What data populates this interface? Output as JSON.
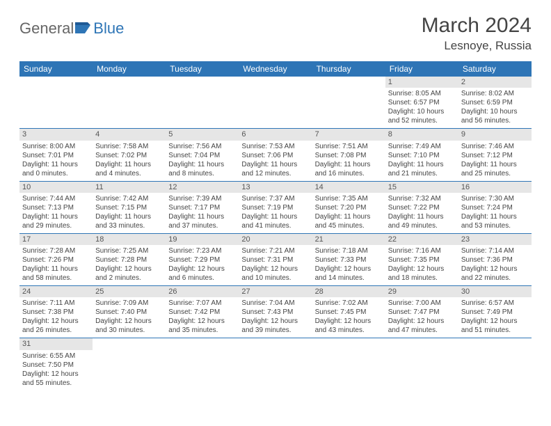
{
  "logo": {
    "text1": "General",
    "text2": "Blue"
  },
  "title": "March 2024",
  "location": "Lesnoye, Russia",
  "weekdays": [
    "Sunday",
    "Monday",
    "Tuesday",
    "Wednesday",
    "Thursday",
    "Friday",
    "Saturday"
  ],
  "colors": {
    "header_bg": "#2e75b6",
    "header_text": "#ffffff",
    "daynum_bg": "#e6e6e6",
    "border": "#2e75b6",
    "text": "#444444"
  },
  "fonts": {
    "title_size": 30,
    "location_size": 17,
    "weekday_size": 12,
    "cell_size": 10
  },
  "weeks": [
    [
      null,
      null,
      null,
      null,
      null,
      {
        "day": "1",
        "sunrise": "Sunrise: 8:05 AM",
        "sunset": "Sunset: 6:57 PM",
        "daylight": "Daylight: 10 hours and 52 minutes."
      },
      {
        "day": "2",
        "sunrise": "Sunrise: 8:02 AM",
        "sunset": "Sunset: 6:59 PM",
        "daylight": "Daylight: 10 hours and 56 minutes."
      }
    ],
    [
      {
        "day": "3",
        "sunrise": "Sunrise: 8:00 AM",
        "sunset": "Sunset: 7:01 PM",
        "daylight": "Daylight: 11 hours and 0 minutes."
      },
      {
        "day": "4",
        "sunrise": "Sunrise: 7:58 AM",
        "sunset": "Sunset: 7:02 PM",
        "daylight": "Daylight: 11 hours and 4 minutes."
      },
      {
        "day": "5",
        "sunrise": "Sunrise: 7:56 AM",
        "sunset": "Sunset: 7:04 PM",
        "daylight": "Daylight: 11 hours and 8 minutes."
      },
      {
        "day": "6",
        "sunrise": "Sunrise: 7:53 AM",
        "sunset": "Sunset: 7:06 PM",
        "daylight": "Daylight: 11 hours and 12 minutes."
      },
      {
        "day": "7",
        "sunrise": "Sunrise: 7:51 AM",
        "sunset": "Sunset: 7:08 PM",
        "daylight": "Daylight: 11 hours and 16 minutes."
      },
      {
        "day": "8",
        "sunrise": "Sunrise: 7:49 AM",
        "sunset": "Sunset: 7:10 PM",
        "daylight": "Daylight: 11 hours and 21 minutes."
      },
      {
        "day": "9",
        "sunrise": "Sunrise: 7:46 AM",
        "sunset": "Sunset: 7:12 PM",
        "daylight": "Daylight: 11 hours and 25 minutes."
      }
    ],
    [
      {
        "day": "10",
        "sunrise": "Sunrise: 7:44 AM",
        "sunset": "Sunset: 7:13 PM",
        "daylight": "Daylight: 11 hours and 29 minutes."
      },
      {
        "day": "11",
        "sunrise": "Sunrise: 7:42 AM",
        "sunset": "Sunset: 7:15 PM",
        "daylight": "Daylight: 11 hours and 33 minutes."
      },
      {
        "day": "12",
        "sunrise": "Sunrise: 7:39 AM",
        "sunset": "Sunset: 7:17 PM",
        "daylight": "Daylight: 11 hours and 37 minutes."
      },
      {
        "day": "13",
        "sunrise": "Sunrise: 7:37 AM",
        "sunset": "Sunset: 7:19 PM",
        "daylight": "Daylight: 11 hours and 41 minutes."
      },
      {
        "day": "14",
        "sunrise": "Sunrise: 7:35 AM",
        "sunset": "Sunset: 7:20 PM",
        "daylight": "Daylight: 11 hours and 45 minutes."
      },
      {
        "day": "15",
        "sunrise": "Sunrise: 7:32 AM",
        "sunset": "Sunset: 7:22 PM",
        "daylight": "Daylight: 11 hours and 49 minutes."
      },
      {
        "day": "16",
        "sunrise": "Sunrise: 7:30 AM",
        "sunset": "Sunset: 7:24 PM",
        "daylight": "Daylight: 11 hours and 53 minutes."
      }
    ],
    [
      {
        "day": "17",
        "sunrise": "Sunrise: 7:28 AM",
        "sunset": "Sunset: 7:26 PM",
        "daylight": "Daylight: 11 hours and 58 minutes."
      },
      {
        "day": "18",
        "sunrise": "Sunrise: 7:25 AM",
        "sunset": "Sunset: 7:28 PM",
        "daylight": "Daylight: 12 hours and 2 minutes."
      },
      {
        "day": "19",
        "sunrise": "Sunrise: 7:23 AM",
        "sunset": "Sunset: 7:29 PM",
        "daylight": "Daylight: 12 hours and 6 minutes."
      },
      {
        "day": "20",
        "sunrise": "Sunrise: 7:21 AM",
        "sunset": "Sunset: 7:31 PM",
        "daylight": "Daylight: 12 hours and 10 minutes."
      },
      {
        "day": "21",
        "sunrise": "Sunrise: 7:18 AM",
        "sunset": "Sunset: 7:33 PM",
        "daylight": "Daylight: 12 hours and 14 minutes."
      },
      {
        "day": "22",
        "sunrise": "Sunrise: 7:16 AM",
        "sunset": "Sunset: 7:35 PM",
        "daylight": "Daylight: 12 hours and 18 minutes."
      },
      {
        "day": "23",
        "sunrise": "Sunrise: 7:14 AM",
        "sunset": "Sunset: 7:36 PM",
        "daylight": "Daylight: 12 hours and 22 minutes."
      }
    ],
    [
      {
        "day": "24",
        "sunrise": "Sunrise: 7:11 AM",
        "sunset": "Sunset: 7:38 PM",
        "daylight": "Daylight: 12 hours and 26 minutes."
      },
      {
        "day": "25",
        "sunrise": "Sunrise: 7:09 AM",
        "sunset": "Sunset: 7:40 PM",
        "daylight": "Daylight: 12 hours and 30 minutes."
      },
      {
        "day": "26",
        "sunrise": "Sunrise: 7:07 AM",
        "sunset": "Sunset: 7:42 PM",
        "daylight": "Daylight: 12 hours and 35 minutes."
      },
      {
        "day": "27",
        "sunrise": "Sunrise: 7:04 AM",
        "sunset": "Sunset: 7:43 PM",
        "daylight": "Daylight: 12 hours and 39 minutes."
      },
      {
        "day": "28",
        "sunrise": "Sunrise: 7:02 AM",
        "sunset": "Sunset: 7:45 PM",
        "daylight": "Daylight: 12 hours and 43 minutes."
      },
      {
        "day": "29",
        "sunrise": "Sunrise: 7:00 AM",
        "sunset": "Sunset: 7:47 PM",
        "daylight": "Daylight: 12 hours and 47 minutes."
      },
      {
        "day": "30",
        "sunrise": "Sunrise: 6:57 AM",
        "sunset": "Sunset: 7:49 PM",
        "daylight": "Daylight: 12 hours and 51 minutes."
      }
    ],
    [
      {
        "day": "31",
        "sunrise": "Sunrise: 6:55 AM",
        "sunset": "Sunset: 7:50 PM",
        "daylight": "Daylight: 12 hours and 55 minutes."
      },
      null,
      null,
      null,
      null,
      null,
      null
    ]
  ]
}
